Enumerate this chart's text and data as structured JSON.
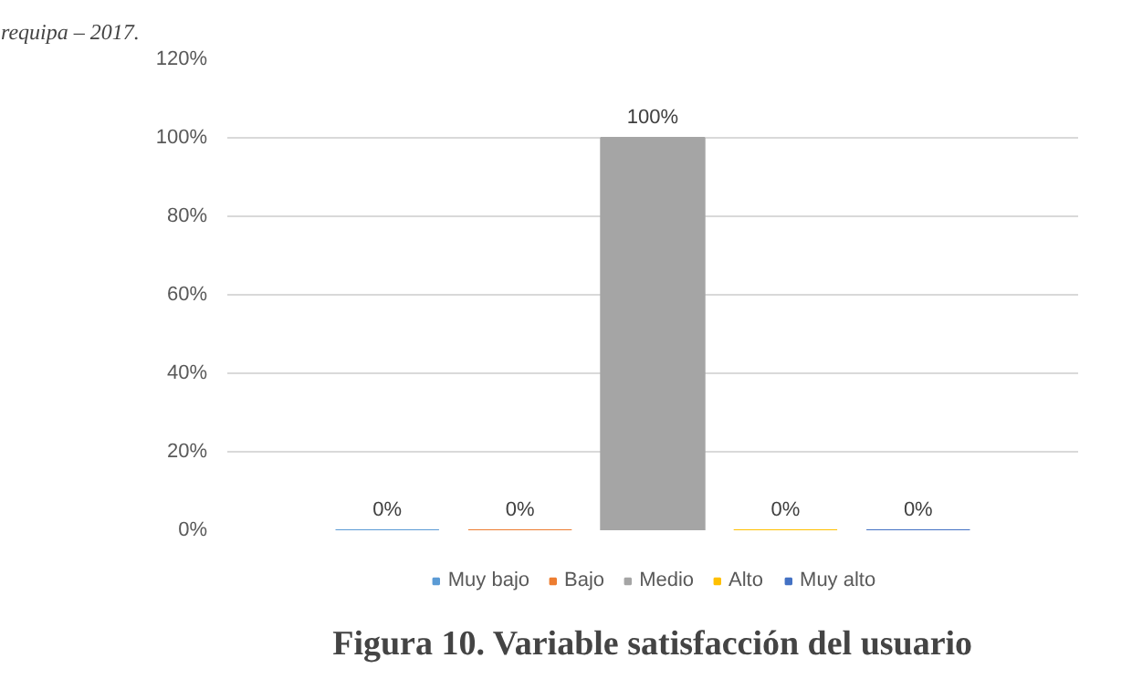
{
  "chart_data": {
    "type": "bar",
    "title": "Figura 10. Variable satisfacción del usuario",
    "annotations": [
      "requipa – 2017."
    ],
    "categories": [
      null
    ],
    "series": [
      {
        "name": "Muy bajo",
        "color": "#5b9bd5",
        "values": [
          0
        ],
        "value_labels": [
          "0%"
        ]
      },
      {
        "name": "Bajo",
        "color": "#ed7d31",
        "values": [
          0
        ],
        "value_labels": [
          "0%"
        ]
      },
      {
        "name": "Medio",
        "color": "#a5a5a5",
        "values": [
          100
        ],
        "value_labels": [
          "100%"
        ]
      },
      {
        "name": "Alto",
        "color": "#ffc000",
        "values": [
          0
        ],
        "value_labels": [
          "0%"
        ]
      },
      {
        "name": "Muy alto",
        "color": "#4472c4",
        "values": [
          0
        ],
        "value_labels": [
          "0%"
        ]
      }
    ],
    "ylim": [
      0,
      120
    ],
    "yticks": [
      {
        "value": 0,
        "label": "0%"
      },
      {
        "value": 20,
        "label": "20%"
      },
      {
        "value": 40,
        "label": "40%"
      },
      {
        "value": 60,
        "label": "60%"
      },
      {
        "value": 80,
        "label": "80%"
      },
      {
        "value": 100,
        "label": "100%"
      },
      {
        "value": 120,
        "label": "120%"
      }
    ],
    "grid": "y",
    "legend": "bottom"
  }
}
